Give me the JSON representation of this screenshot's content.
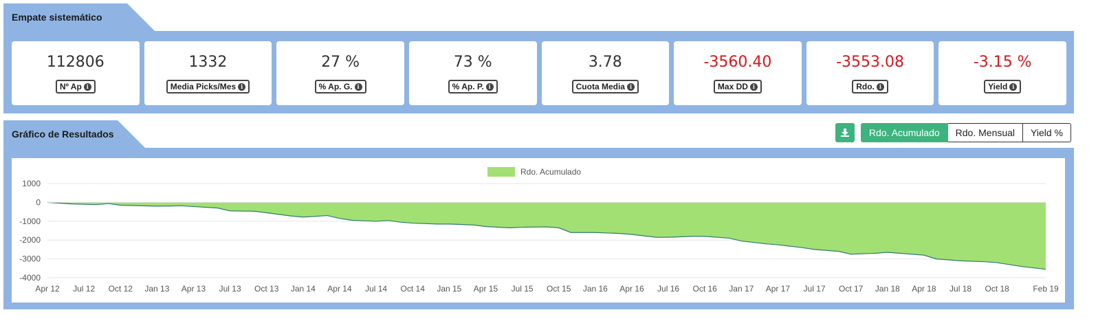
{
  "section1": {
    "title": "Empate sistemático",
    "stats": [
      {
        "value": "112806",
        "label": "Nº Ap",
        "negative": false
      },
      {
        "value": "1332",
        "label": "Media Picks/Mes",
        "negative": false
      },
      {
        "value": "27 %",
        "label": "% Ap. G.",
        "negative": false
      },
      {
        "value": "73 %",
        "label": "% Ap. P.",
        "negative": false
      },
      {
        "value": "3.78",
        "label": "Cuota Media",
        "negative": false
      },
      {
        "value": "-3560.40",
        "label": "Max DD",
        "negative": true
      },
      {
        "value": "-3553.08",
        "label": "Rdo.",
        "negative": true
      },
      {
        "value": "-3.15 %",
        "label": "Yield",
        "negative": true
      }
    ]
  },
  "section2": {
    "title": "Gráfico de Resultados",
    "download_icon": "download-icon",
    "tabs": [
      {
        "label": "Rdo. Acumulado",
        "active": true
      },
      {
        "label": "Rdo. Mensual",
        "active": false
      },
      {
        "label": "Yield %",
        "active": false
      }
    ]
  },
  "colors": {
    "panel": "#8fb4e3",
    "accent": "#3db37e",
    "negative": "#d9161d",
    "area_fill": "#a2e073",
    "line": "#2e7d6b"
  },
  "chart_data": {
    "type": "area",
    "legend": [
      "Rdo. Acumulado"
    ],
    "legend_position": "top-center",
    "grid": true,
    "ylim": [
      -4000,
      1000
    ],
    "y_ticks": [
      1000,
      0,
      -1000,
      -2000,
      -3000,
      -4000
    ],
    "x_ticks": [
      "Apr 12",
      "Jul 12",
      "Oct 12",
      "Jan 13",
      "Apr 13",
      "Jul 13",
      "Oct 13",
      "Jan 14",
      "Apr 14",
      "Jul 14",
      "Oct 14",
      "Jan 15",
      "Apr 15",
      "Jul 15",
      "Oct 15",
      "Jan 16",
      "Apr 16",
      "Jul 16",
      "Oct 16",
      "Jan 17",
      "Apr 17",
      "Jul 17",
      "Oct 17",
      "Jan 18",
      "Apr 18",
      "Jul 18",
      "Oct 18",
      "Feb 19"
    ],
    "series": [
      {
        "name": "Rdo. Acumulado",
        "x": [
          "Apr 12",
          "Jun 12",
          "Aug 12",
          "Sep 12",
          "Oct 12",
          "Jan 13",
          "Mar 13",
          "Apr 13",
          "Jun 13",
          "Jul 13",
          "Sep 13",
          "Oct 13",
          "Dec 13",
          "Jan 14",
          "Mar 14",
          "Apr 14",
          "May 14",
          "Jul 14",
          "Aug 14",
          "Sep 14",
          "Oct 14",
          "Dec 14",
          "Jan 15",
          "Mar 15",
          "Apr 15",
          "Jun 15",
          "Jul 15",
          "Sep 15",
          "Oct 15",
          "Nov 15",
          "Jan 16",
          "Mar 16",
          "Apr 16",
          "Jun 16",
          "Jul 16",
          "Sep 16",
          "Oct 16",
          "Dec 16",
          "Jan 17",
          "Mar 17",
          "Apr 17",
          "Jun 17",
          "Jul 17",
          "Sep 17",
          "Oct 17",
          "Dec 17",
          "Jan 18",
          "Mar 18",
          "Apr 18",
          "May 18",
          "Jul 18",
          "Sep 18",
          "Oct 18",
          "Dec 18",
          "Feb 19"
        ],
        "values": [
          0,
          -80,
          -120,
          -60,
          -150,
          -200,
          -180,
          -220,
          -300,
          -450,
          -470,
          -550,
          -720,
          -780,
          -700,
          -850,
          -950,
          -1000,
          -960,
          -1050,
          -1100,
          -1150,
          -1150,
          -1200,
          -1280,
          -1350,
          -1320,
          -1300,
          -1350,
          -1600,
          -1600,
          -1650,
          -1700,
          -1850,
          -1850,
          -1800,
          -1800,
          -1900,
          -2050,
          -2200,
          -2250,
          -2400,
          -2500,
          -2600,
          -2750,
          -2700,
          -2650,
          -2750,
          -2800,
          -3000,
          -3100,
          -3150,
          -3200,
          -3400,
          -3550
        ]
      }
    ]
  }
}
